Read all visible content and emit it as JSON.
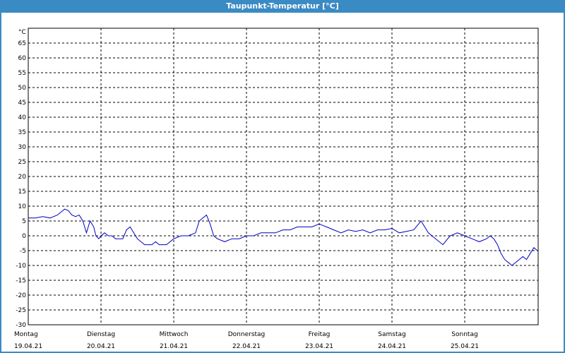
{
  "window": {
    "title": "Taupunkt-Temperatur [°C]"
  },
  "colors": {
    "titlebar": "#3a8ac4",
    "line": "#0000c0",
    "grid": "#000000"
  },
  "chart_data": {
    "type": "line",
    "title": "Taupunkt-Temperatur [°C]",
    "ylabel": "°C",
    "ylim": [
      -30,
      70
    ],
    "yticks": [
      65,
      60,
      55,
      50,
      45,
      40,
      35,
      30,
      25,
      20,
      15,
      10,
      5,
      0,
      -5,
      -10,
      -15,
      -20,
      -25,
      -30
    ],
    "xlim": [
      0,
      7
    ],
    "grid": true,
    "x_labels": [
      {
        "day": "Montag",
        "date": "19.04.21"
      },
      {
        "day": "Dienstag",
        "date": "20.04.21"
      },
      {
        "day": "Mittwoch",
        "date": "21.04.21"
      },
      {
        "day": "Donnerstag",
        "date": "22.04.21"
      },
      {
        "day": "Freitag",
        "date": "23.04.21"
      },
      {
        "day": "Samstag",
        "date": "24.04.21"
      },
      {
        "day": "Sonntag",
        "date": "25.04.21"
      }
    ],
    "series": [
      {
        "x": [
          0,
          0.1,
          0.2,
          0.3,
          0.4,
          0.5,
          0.55,
          0.6,
          0.65,
          0.7,
          0.75,
          0.8,
          0.85,
          0.9,
          0.93,
          0.97,
          1.0,
          1.05,
          1.1,
          1.15,
          1.2,
          1.3,
          1.35,
          1.4,
          1.45,
          1.5,
          1.6,
          1.7,
          1.75,
          1.8,
          1.9,
          2.0,
          2.1,
          2.2,
          2.3,
          2.35,
          2.4,
          2.45,
          2.5,
          2.55,
          2.6,
          2.7,
          2.8,
          2.9,
          3.0,
          3.1,
          3.2,
          3.3,
          3.4,
          3.5,
          3.6,
          3.7,
          3.8,
          3.9,
          4.0,
          4.05,
          4.1,
          4.2,
          4.3,
          4.4,
          4.5,
          4.6,
          4.7,
          4.8,
          4.9,
          5.0,
          5.1,
          5.2,
          5.3,
          5.35,
          5.4,
          5.5,
          5.6,
          5.7,
          5.8,
          5.9,
          6.0,
          6.1,
          6.2,
          6.3,
          6.35,
          6.4,
          6.45,
          6.5,
          6.55,
          6.6,
          6.65,
          6.7,
          6.75,
          6.8,
          6.85,
          6.9,
          6.95,
          7.0
        ],
        "y": [
          6,
          6,
          6.5,
          6,
          7,
          9,
          8.5,
          7,
          6.5,
          7,
          5,
          1,
          5,
          3,
          0,
          -1,
          0,
          1,
          0,
          0,
          -1,
          -1,
          2,
          3,
          1,
          -1,
          -3,
          -3,
          -2,
          -3,
          -3,
          -1,
          0,
          0,
          1,
          5,
          6,
          7,
          4,
          0,
          -1,
          -2,
          -1,
          -1,
          0,
          0,
          1,
          1,
          1,
          2,
          2,
          3,
          3,
          3,
          4,
          3.5,
          3,
          2,
          1,
          2,
          1.5,
          2,
          1,
          2,
          2,
          2.5,
          1,
          1.5,
          2,
          3.5,
          5,
          1,
          -1,
          -3,
          0,
          1,
          0,
          -1,
          -2,
          -1,
          0,
          -1,
          -3,
          -6,
          -8,
          -9,
          -10,
          -9,
          -8,
          -7,
          -8,
          -6,
          -4,
          -5
        ]
      }
    ]
  }
}
